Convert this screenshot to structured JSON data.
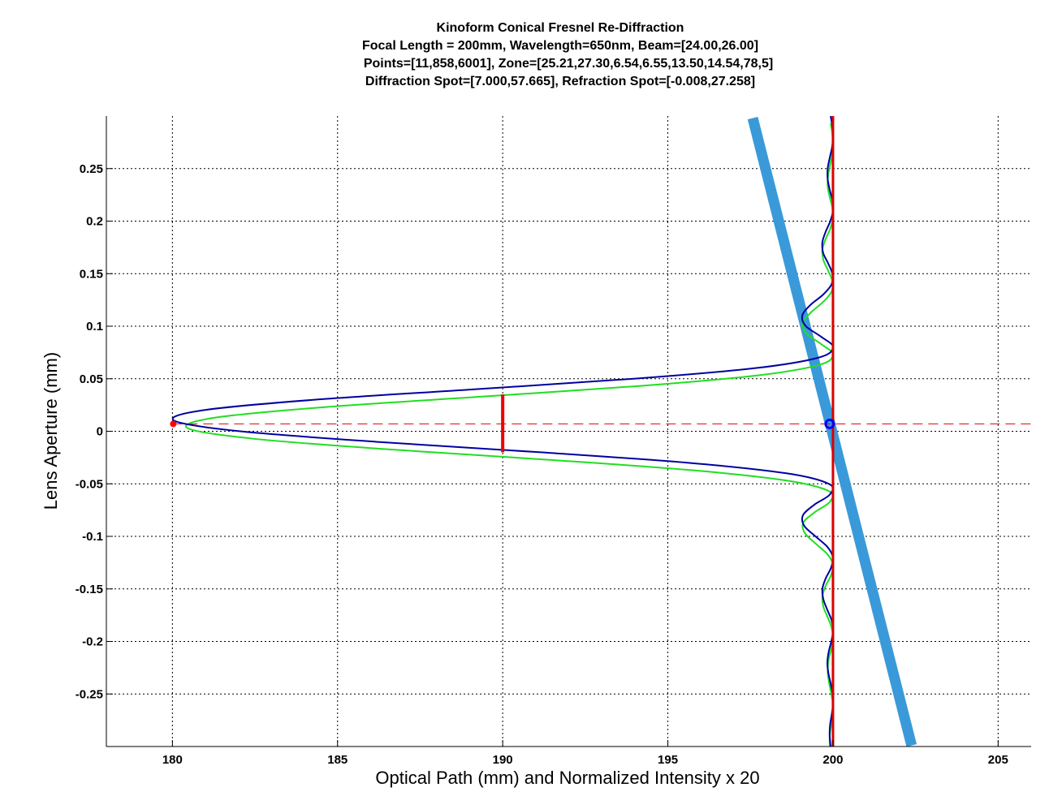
{
  "chart_data": {
    "type": "line",
    "title": [
      "Kinoform Conical Fresnel Re-Diffraction",
      "Focal Length = 200mm, Wavelength=650nm, Beam=[24.00,26.00]",
      "Points=[11,858,6001], Zone=[25.21,27.30,6.54,6.55,13.50,14.54,78,5]",
      "Diffraction Spot=[7.000,57.665], Refraction Spot=[-0.008,27.258]"
    ],
    "xlabel": "Optical Path (mm) and Normalized Intensity x 20",
    "ylabel": "Lens Aperture (mm)",
    "xlim": [
      178,
      206
    ],
    "ylim": [
      -0.3,
      0.3
    ],
    "xticks": [
      180,
      185,
      190,
      195,
      200,
      205
    ],
    "xtick_labels": [
      "180",
      "185",
      "190",
      "195",
      "200",
      "205"
    ],
    "yticks": [
      0.25,
      0.2,
      0.15,
      0.1,
      0.05,
      0,
      -0.05,
      -0.1,
      -0.15,
      -0.2,
      -0.25
    ],
    "ytick_labels": [
      "0.25",
      "0.2",
      "0.15",
      "0.1",
      "0.05",
      "0",
      "-0.05",
      "-0.1",
      "-0.15",
      "-0.2",
      "-0.25"
    ],
    "grid": true,
    "y": [
      -0.3,
      -0.29,
      -0.28,
      -0.27,
      -0.26,
      -0.25,
      -0.24,
      -0.23,
      -0.22,
      -0.21,
      -0.2,
      -0.19,
      -0.18,
      -0.17,
      -0.16,
      -0.15,
      -0.14,
      -0.13,
      -0.12,
      -0.11,
      -0.1,
      -0.09,
      -0.08,
      -0.07,
      -0.06,
      -0.05,
      -0.04,
      -0.03,
      -0.02,
      -0.01,
      0.0,
      0.01,
      0.02,
      0.03,
      0.04,
      0.05,
      0.06,
      0.07,
      0.08,
      0.09,
      0.1,
      0.11,
      0.12,
      0.13,
      0.14,
      0.15,
      0.16,
      0.17,
      0.18,
      0.19,
      0.2,
      0.21,
      0.22,
      0.23,
      0.24,
      0.25,
      0.26,
      0.27,
      0.28,
      0.29,
      0.3
    ],
    "series": [
      {
        "color": "#0000a0",
        "y_offset": 0,
        "x": [
          199.93,
          199.9,
          199.91,
          199.96,
          200.0,
          199.99,
          199.93,
          199.86,
          199.83,
          199.87,
          199.95,
          200.0,
          199.96,
          199.83,
          199.71,
          199.68,
          199.78,
          199.94,
          200.0,
          199.83,
          199.47,
          199.13,
          199.09,
          199.43,
          199.91,
          199.87,
          198.59,
          195.62,
          191.15,
          186.17,
          182.06,
          180.06,
          180.92,
          184.3,
          189.15,
          193.97,
          197.62,
          199.55,
          200.0,
          199.64,
          199.18,
          199.07,
          199.31,
          199.7,
          199.96,
          199.98,
          199.85,
          199.7,
          199.68,
          199.78,
          199.92,
          200.0,
          199.98,
          199.9,
          199.84,
          199.84,
          199.9,
          199.97,
          200.0,
          199.98,
          199.93
        ]
      },
      {
        "color": "#22dd22",
        "y_offset": -0.007,
        "x": [
          199.93,
          199.9,
          199.91,
          199.96,
          200.0,
          199.99,
          199.93,
          199.87,
          199.84,
          199.87,
          199.95,
          200.0,
          199.96,
          199.84,
          199.71,
          199.68,
          199.78,
          199.94,
          200.0,
          199.83,
          199.48,
          199.15,
          199.1,
          199.45,
          199.91,
          199.88,
          198.62,
          195.71,
          191.33,
          186.45,
          182.42,
          180.46,
          181.3,
          184.61,
          189.37,
          194.09,
          197.67,
          199.56,
          200.0,
          199.64,
          199.2,
          199.08,
          199.33,
          199.7,
          199.96,
          199.98,
          199.85,
          199.71,
          199.68,
          199.78,
          199.92,
          200.0,
          199.98,
          199.9,
          199.84,
          199.85,
          199.91,
          199.97,
          200.0,
          199.98,
          199.93
        ]
      }
    ],
    "refraction_beam": {
      "color": "#3a9ad9",
      "x": [
        197.57,
        202.38
      ],
      "y": [
        0.298,
        -0.299
      ]
    },
    "focal_line": {
      "color": "#dd0000",
      "x": 200
    },
    "spot_line": {
      "color": "#dd0000",
      "y": 0.007,
      "x": [
        180,
        206
      ]
    },
    "diffraction_marker": {
      "color": "#ff0000",
      "x": 180,
      "y": 0.007
    },
    "refraction_marker": {
      "color": "#0000ff",
      "x": 199.9,
      "y": 0.007
    },
    "width_bar": {
      "color": "#ee0000",
      "x": 190,
      "y": [
        0.035,
        -0.02
      ]
    }
  }
}
